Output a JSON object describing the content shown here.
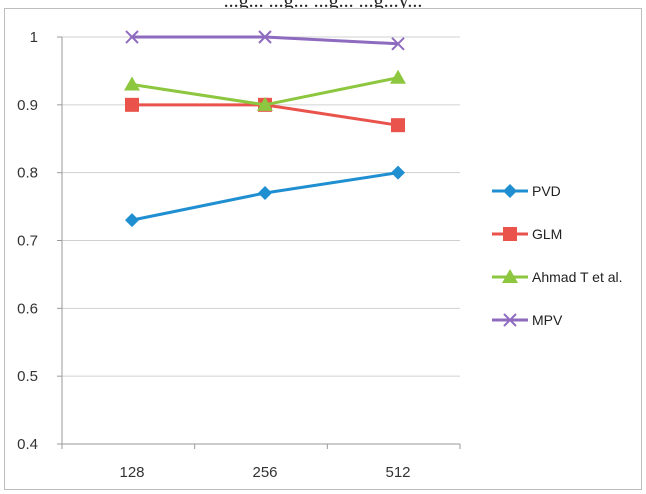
{
  "caption_fragment": "...g... ...g... ...g... ...g...y...",
  "chart_data": {
    "type": "line",
    "title": "",
    "xlabel": "",
    "ylabel": "",
    "categories": [
      "128",
      "256",
      "512"
    ],
    "ylim": [
      0.4,
      1
    ],
    "yticks": [
      "0.4",
      "0.5",
      "0.6",
      "0.7",
      "0.8",
      "0.9",
      "1"
    ],
    "grid": true,
    "legend_position": "right",
    "series": [
      {
        "name": "PVD",
        "values": [
          0.73,
          0.77,
          0.8
        ],
        "color": "#1f8fd1",
        "marker": "diamond"
      },
      {
        "name": "GLM",
        "values": [
          0.9,
          0.9,
          0.87
        ],
        "color": "#e9534c",
        "marker": "square"
      },
      {
        "name": "Ahmad T et al.",
        "values": [
          0.93,
          0.9,
          0.94
        ],
        "color": "#8dc63f",
        "marker": "triangle"
      },
      {
        "name": "MPV",
        "values": [
          1.0,
          1.0,
          0.99
        ],
        "color": "#8e6bbf",
        "marker": "x"
      }
    ]
  }
}
